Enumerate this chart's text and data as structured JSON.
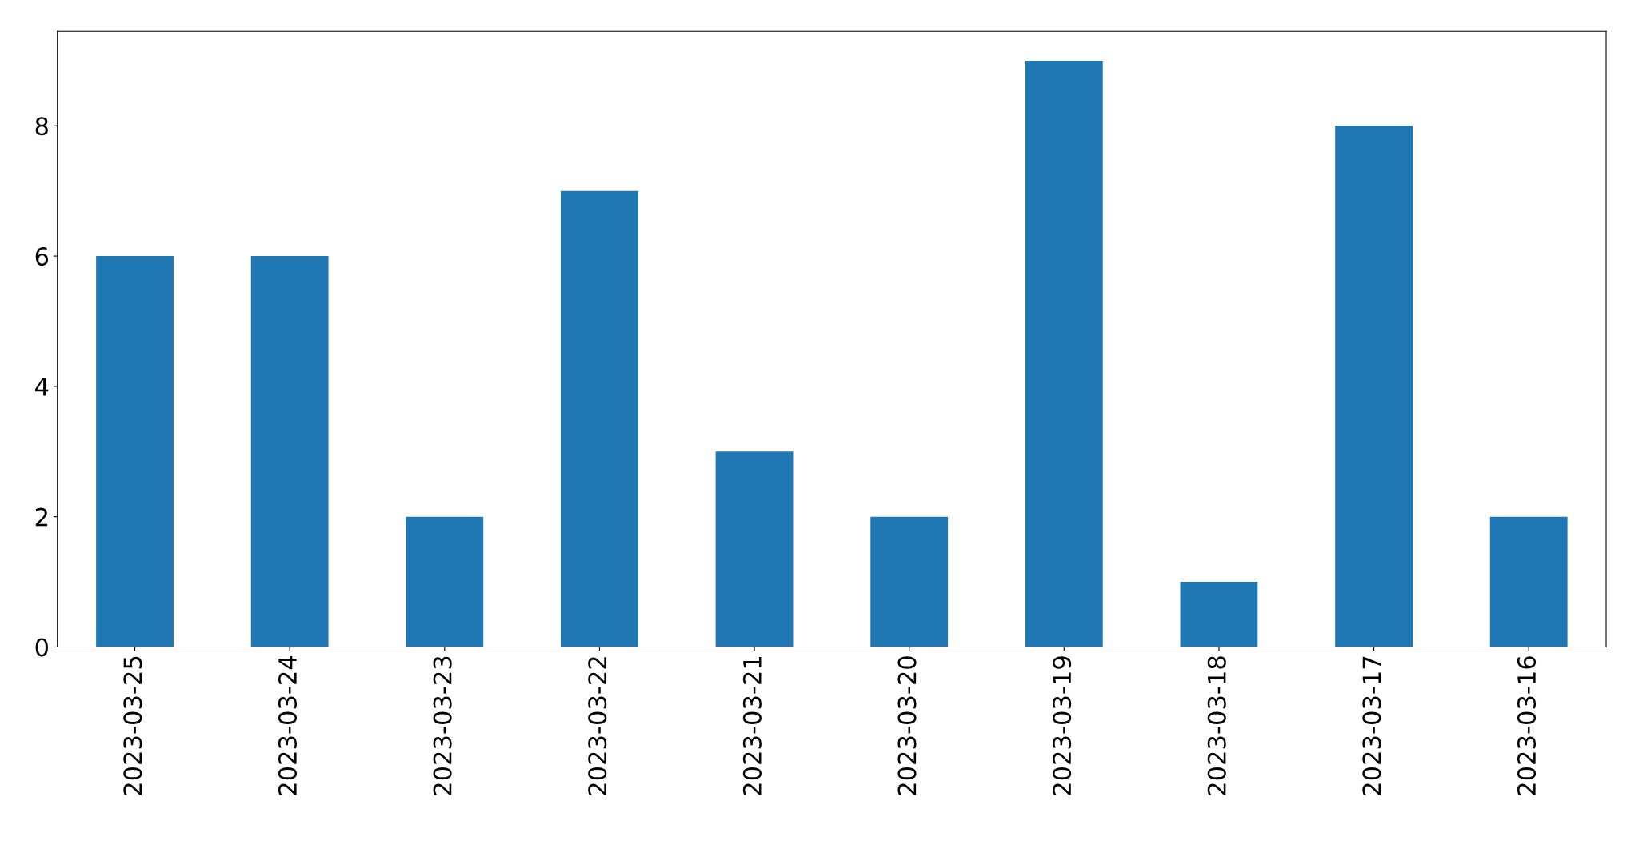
{
  "chart_data": {
    "type": "bar",
    "categories": [
      "2023-03-25",
      "2023-03-24",
      "2023-03-23",
      "2023-03-22",
      "2023-03-21",
      "2023-03-20",
      "2023-03-19",
      "2023-03-18",
      "2023-03-17",
      "2023-03-16"
    ],
    "values": [
      6,
      6,
      2,
      7,
      3,
      2,
      9,
      1,
      8,
      2
    ],
    "color": "#1f77b4",
    "ylim": [
      0,
      9.45
    ],
    "yticks": [
      0,
      2,
      4,
      6,
      8
    ],
    "grid": false,
    "legend": false
  }
}
